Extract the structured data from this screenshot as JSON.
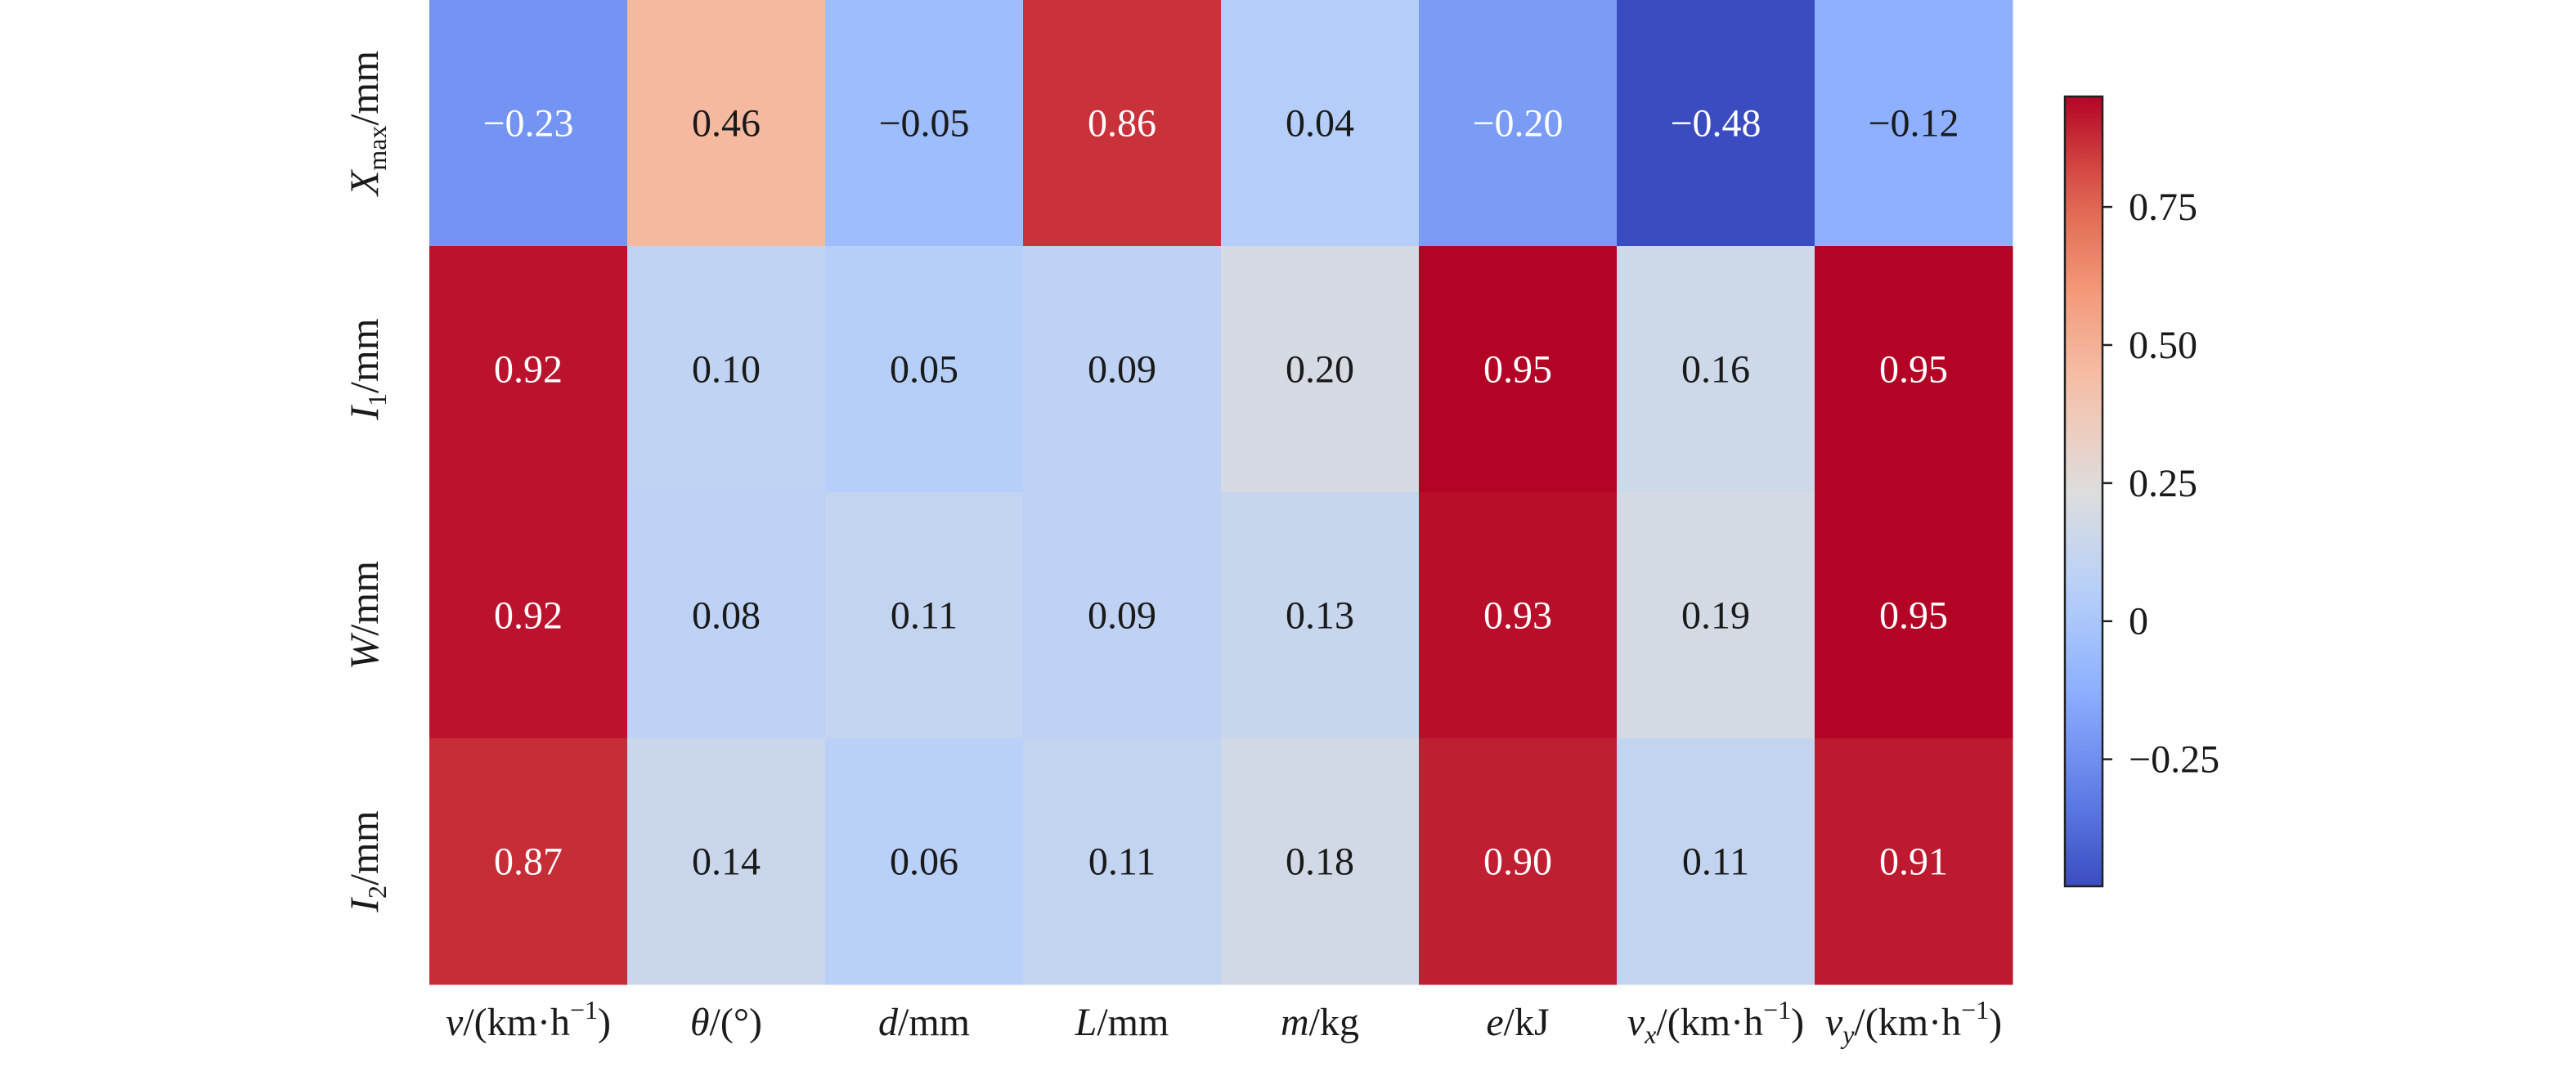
{
  "chart_data": {
    "type": "heatmap",
    "title": "",
    "rows": [
      {
        "var": "X",
        "sub": "max",
        "unit": "/mm"
      },
      {
        "var": "I",
        "sub": "1",
        "unit": "/mm"
      },
      {
        "var": "W",
        "sub": "",
        "unit": "/mm"
      },
      {
        "var": "I",
        "sub": "2",
        "unit": "/mm"
      }
    ],
    "columns": [
      {
        "var": "v",
        "sub": "",
        "unit": "/(km·h",
        "sup": "−1",
        "close": ")"
      },
      {
        "var": "θ",
        "sub": "",
        "unit": "/(°)",
        "sup": "",
        "close": ""
      },
      {
        "var": "d",
        "sub": "",
        "unit": "/mm",
        "sup": "",
        "close": ""
      },
      {
        "var": "L",
        "sub": "",
        "unit": "/mm",
        "sup": "",
        "close": ""
      },
      {
        "var": "m",
        "sub": "",
        "unit": "/kg",
        "sup": "",
        "close": ""
      },
      {
        "var": "e",
        "sub": "",
        "unit": "/kJ",
        "sup": "",
        "close": ""
      },
      {
        "var": "v",
        "sub": "x",
        "unit": "/(km·h",
        "sup": "−1",
        "close": ")"
      },
      {
        "var": "v",
        "sub": "y",
        "unit": "/(km·h",
        "sup": "−1",
        "close": ")"
      }
    ],
    "values": [
      [
        -0.23,
        0.46,
        -0.05,
        0.86,
        0.04,
        -0.2,
        -0.48,
        -0.12
      ],
      [
        0.92,
        0.1,
        0.05,
        0.09,
        0.2,
        0.95,
        0.16,
        0.95
      ],
      [
        0.92,
        0.08,
        0.11,
        0.09,
        0.13,
        0.93,
        0.19,
        0.95
      ],
      [
        0.87,
        0.14,
        0.06,
        0.11,
        0.18,
        0.9,
        0.11,
        0.91
      ]
    ],
    "colorbar": {
      "colormap": "coolwarm",
      "vmin": -0.48,
      "vmax": 0.95,
      "ticks": [
        -0.25,
        0,
        0.25,
        0.5,
        0.75
      ],
      "tick_labels": [
        "−0.25",
        "0",
        "0.25",
        "0.50",
        "0.75"
      ],
      "location": "right"
    }
  }
}
